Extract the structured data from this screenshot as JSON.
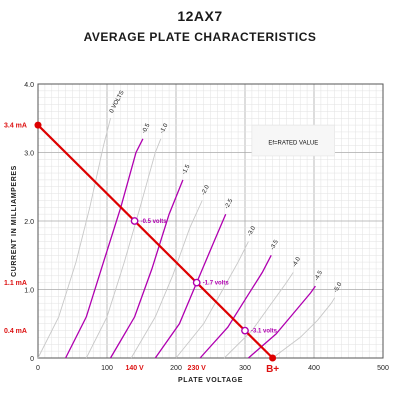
{
  "title": "12AX7",
  "subtitle": "AVERAGE PLATE CHARACTERISTICS",
  "chart_data": {
    "type": "line",
    "title": "12AX7",
    "subtitle": "AVERAGE PLATE CHARACTERISTICS",
    "xlabel": "PLATE VOLTAGE",
    "ylabel": "CURRENT IN MILLIAMPERES",
    "xlim": [
      0,
      500
    ],
    "ylim": [
      0,
      4.0
    ],
    "x_ticks": [
      "0",
      "100",
      "200",
      "300",
      "400",
      "500"
    ],
    "y_ticks": [
      "0",
      "1.0",
      "2.0",
      "3.0",
      "4.0"
    ],
    "grid": true,
    "annotation_box": "Ef=RATED VALUE",
    "series": [
      {
        "name": "0 VOLTS",
        "color": "#c8c8c8",
        "points": [
          [
            0,
            0
          ],
          [
            30,
            0.6
          ],
          [
            55,
            1.4
          ],
          [
            75,
            2.2
          ],
          [
            95,
            3.1
          ],
          [
            105,
            3.5
          ]
        ]
      },
      {
        "name": "-0.5",
        "color": "#b000b0",
        "points": [
          [
            40,
            0
          ],
          [
            70,
            0.6
          ],
          [
            95,
            1.4
          ],
          [
            120,
            2.2
          ],
          [
            142,
            3.0
          ],
          [
            152,
            3.2
          ]
        ]
      },
      {
        "name": "-1.0",
        "color": "#c8c8c8",
        "points": [
          [
            70,
            0
          ],
          [
            100,
            0.6
          ],
          [
            125,
            1.4
          ],
          [
            148,
            2.2
          ],
          [
            170,
            3.0
          ],
          [
            178,
            3.2
          ]
        ]
      },
      {
        "name": "-1.5",
        "color": "#b000b0",
        "points": [
          [
            105,
            0
          ],
          [
            140,
            0.6
          ],
          [
            165,
            1.3
          ],
          [
            190,
            2.1
          ],
          [
            210,
            2.6
          ]
        ]
      },
      {
        "name": "-2.0",
        "color": "#c8c8c8",
        "points": [
          [
            135,
            0
          ],
          [
            170,
            0.6
          ],
          [
            195,
            1.2
          ],
          [
            220,
            1.9
          ],
          [
            238,
            2.3
          ]
        ]
      },
      {
        "name": "-2.5",
        "color": "#b000b0",
        "points": [
          [
            170,
            0
          ],
          [
            205,
            0.5
          ],
          [
            230,
            1.1
          ],
          [
            255,
            1.7
          ],
          [
            272,
            2.1
          ]
        ]
      },
      {
        "name": "-3.0",
        "color": "#c8c8c8",
        "points": [
          [
            200,
            0
          ],
          [
            240,
            0.5
          ],
          [
            265,
            0.95
          ],
          [
            290,
            1.4
          ],
          [
            305,
            1.7
          ]
        ]
      },
      {
        "name": "-3.5",
        "color": "#b000b0",
        "points": [
          [
            235,
            0
          ],
          [
            275,
            0.45
          ],
          [
            300,
            0.85
          ],
          [
            325,
            1.25
          ],
          [
            338,
            1.5
          ]
        ]
      },
      {
        "name": "-4.0",
        "color": "#c8c8c8",
        "points": [
          [
            270,
            0
          ],
          [
            310,
            0.4
          ],
          [
            335,
            0.75
          ],
          [
            360,
            1.1
          ],
          [
            370,
            1.25
          ]
        ]
      },
      {
        "name": "-4.5",
        "color": "#b000b0",
        "points": [
          [
            305,
            0
          ],
          [
            345,
            0.35
          ],
          [
            370,
            0.65
          ],
          [
            395,
            0.95
          ],
          [
            402,
            1.05
          ]
        ]
      },
      {
        "name": "-5.0",
        "color": "#c8c8c8",
        "points": [
          [
            340,
            0
          ],
          [
            380,
            0.3
          ],
          [
            405,
            0.55
          ],
          [
            425,
            0.8
          ],
          [
            430,
            0.88
          ]
        ]
      }
    ],
    "load_line": {
      "color": "#dd0000",
      "points": [
        [
          0,
          3.4
        ],
        [
          340,
          0
        ]
      ]
    },
    "operating_points": [
      {
        "x": 140,
        "y": 2.0,
        "label": "-0.5 volts"
      },
      {
        "x": 230,
        "y": 1.1,
        "label": "-1.7 volts"
      },
      {
        "x": 300,
        "y": 0.4,
        "label": "-3.1 volts"
      }
    ],
    "red_annotations": [
      {
        "axis": "y",
        "value": 3.4,
        "label": "3.4 mA"
      },
      {
        "axis": "y",
        "value": 1.1,
        "label": "1.1 mA"
      },
      {
        "axis": "y",
        "value": 0.4,
        "label": "0.4 mA"
      },
      {
        "axis": "x",
        "value": 140,
        "label": "140 V"
      },
      {
        "axis": "x",
        "value": 230,
        "label": "230 V"
      },
      {
        "axis": "x",
        "value": 340,
        "label": "B+"
      }
    ]
  }
}
